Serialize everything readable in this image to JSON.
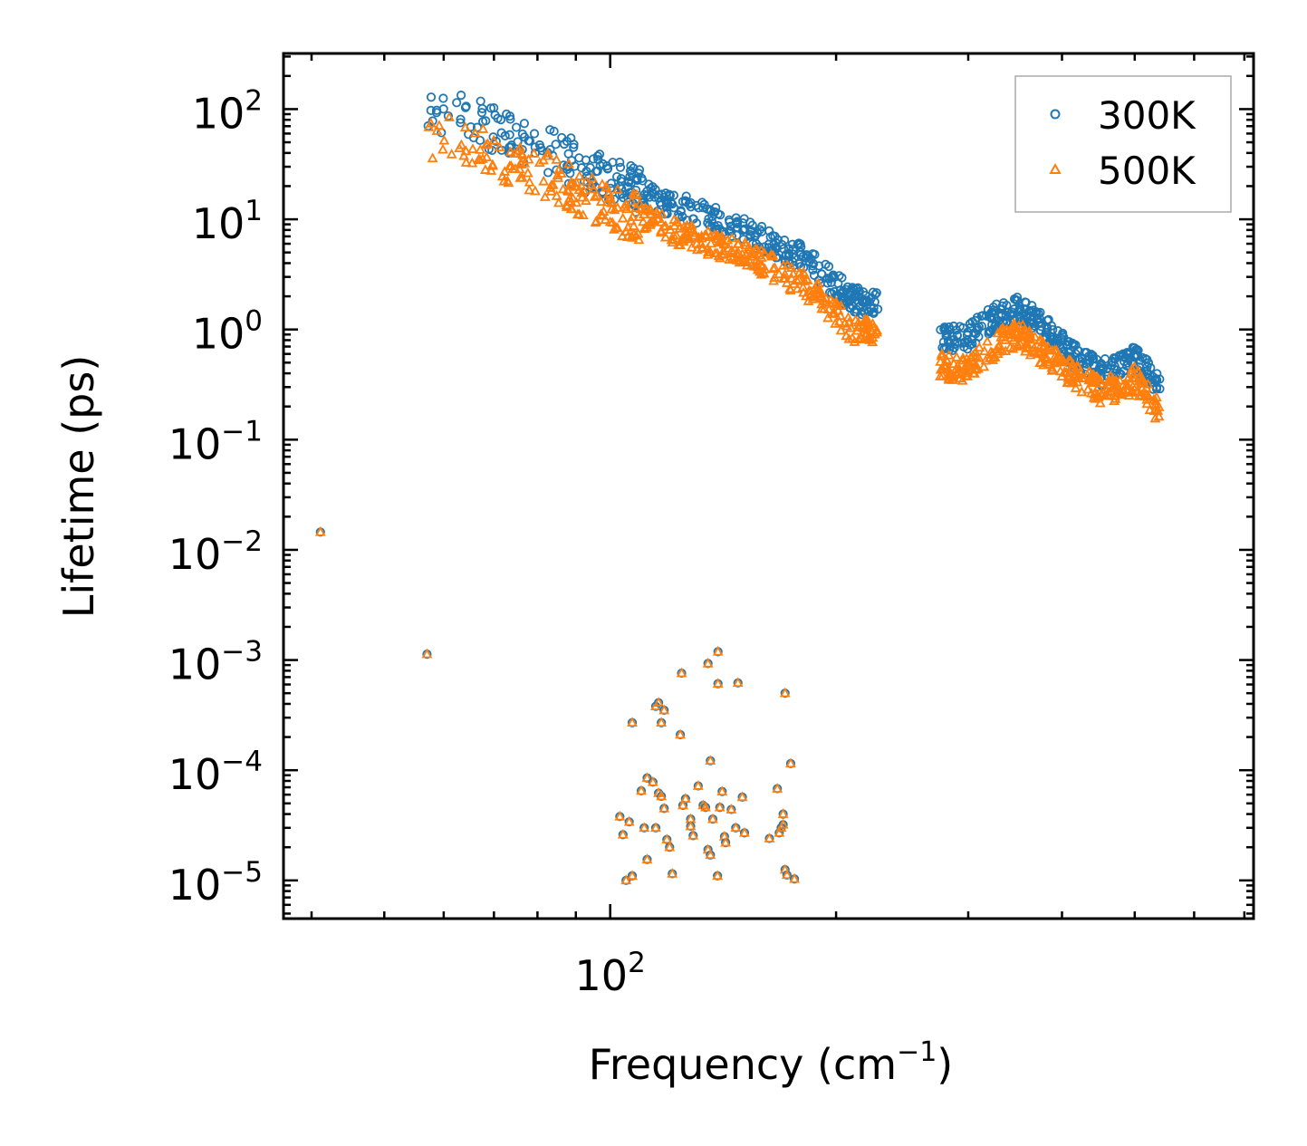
{
  "chart_data": {
    "type": "scatter",
    "title": "",
    "xlabel": "Frequency (cm",
    "xlabel_sup": "−1",
    "xlabel_end": ")",
    "ylabel": "Lifetime (ps)",
    "xscale": "log",
    "yscale": "log",
    "xlim": [
      36.7,
      720
    ],
    "ylim": [
      4.5e-06,
      320
    ],
    "x_tick_labels": [
      {
        "base": "10",
        "exp": "2",
        "value": 100
      }
    ],
    "y_tick_labels": [
      {
        "base": "10",
        "exp": "2",
        "value": 100
      },
      {
        "base": "10",
        "exp": "1",
        "value": 10
      },
      {
        "base": "10",
        "exp": "0",
        "value": 1
      },
      {
        "base": "10",
        "exp": "−1",
        "value": 0.1
      },
      {
        "base": "10",
        "exp": "−2",
        "value": 0.01
      },
      {
        "base": "10",
        "exp": "−3",
        "value": 0.001
      },
      {
        "base": "10",
        "exp": "−4",
        "value": 0.0001
      },
      {
        "base": "10",
        "exp": "−5",
        "value": 1e-05
      }
    ],
    "legend_position": "top-right",
    "series": [
      {
        "name": "300K",
        "marker": "circle",
        "color": "#1f77b4",
        "trend": [
          [
            56,
            110
          ],
          [
            65,
            80
          ],
          [
            75,
            55
          ],
          [
            85,
            40
          ],
          [
            90,
            32
          ],
          [
            95,
            26
          ],
          [
            100,
            22
          ],
          [
            110,
            18
          ],
          [
            120,
            14
          ],
          [
            130,
            12
          ],
          [
            140,
            10
          ],
          [
            150,
            8
          ],
          [
            160,
            6.5
          ],
          [
            170,
            5.5
          ],
          [
            180,
            4.5
          ],
          [
            190,
            3.5
          ],
          [
            200,
            2.5
          ],
          [
            210,
            1.9
          ],
          [
            220,
            1.7
          ],
          [
            228,
            1.7
          ],
          [
            280,
            0.8
          ],
          [
            300,
            0.85
          ],
          [
            320,
            1.2
          ],
          [
            340,
            1.5
          ],
          [
            350,
            1.6
          ],
          [
            380,
            1.1
          ],
          [
            410,
            0.6
          ],
          [
            450,
            0.4
          ],
          [
            480,
            0.45
          ],
          [
            500,
            0.55
          ],
          [
            520,
            0.4
          ],
          [
            540,
            0.3
          ]
        ]
      },
      {
        "name": "500K",
        "marker": "triangle",
        "color": "#ff7f0e",
        "trend": [
          [
            56,
            62
          ],
          [
            65,
            48
          ],
          [
            75,
            32
          ],
          [
            85,
            23
          ],
          [
            90,
            18
          ],
          [
            95,
            15
          ],
          [
            100,
            12
          ],
          [
            110,
            10
          ],
          [
            120,
            8
          ],
          [
            130,
            6.5
          ],
          [
            140,
            5.5
          ],
          [
            150,
            4.8
          ],
          [
            160,
            4
          ],
          [
            170,
            3.2
          ],
          [
            180,
            2.6
          ],
          [
            190,
            2
          ],
          [
            200,
            1.4
          ],
          [
            210,
            1
          ],
          [
            220,
            0.95
          ],
          [
            228,
            0.95
          ],
          [
            280,
            0.45
          ],
          [
            300,
            0.45
          ],
          [
            320,
            0.65
          ],
          [
            340,
            0.85
          ],
          [
            350,
            0.9
          ],
          [
            380,
            0.6
          ],
          [
            410,
            0.4
          ],
          [
            450,
            0.28
          ],
          [
            480,
            0.3
          ],
          [
            500,
            0.35
          ],
          [
            520,
            0.25
          ],
          [
            540,
            0.17
          ]
        ]
      }
    ],
    "outliers": [
      [
        41.1,
        0.0145
      ],
      [
        57.0,
        0.00113
      ],
      [
        139.2,
        0.00119
      ],
      [
        139.2,
        0.00061
      ],
      [
        124.5,
        0.00076
      ],
      [
        135.0,
        0.00093
      ],
      [
        148.0,
        0.00062
      ],
      [
        171.0,
        0.0005
      ],
      [
        174.0,
        0.000115
      ],
      [
        107.0,
        0.00027
      ],
      [
        115.0,
        0.00038
      ],
      [
        116.0,
        0.00041
      ],
      [
        118.0,
        0.00035
      ],
      [
        117.0,
        0.00027
      ],
      [
        124.0,
        0.00021
      ],
      [
        136.0,
        0.000122
      ],
      [
        110.0,
        6.5e-05
      ],
      [
        112.0,
        8.5e-05
      ],
      [
        114.0,
        7.8e-05
      ],
      [
        116.0,
        6.2e-05
      ],
      [
        117.0,
        5.8e-05
      ],
      [
        118.0,
        4.5e-05
      ],
      [
        115.0,
        3e-05
      ],
      [
        111.0,
        3e-05
      ],
      [
        106.0,
        3.4e-05
      ],
      [
        104.0,
        2.6e-05
      ],
      [
        103.0,
        3.8e-05
      ],
      [
        105.0,
        1e-05
      ],
      [
        107.0,
        1.1e-05
      ],
      [
        112.0,
        1.55e-05
      ],
      [
        119.0,
        2.35e-05
      ],
      [
        120.0,
        2e-05
      ],
      [
        121.0,
        1.15e-05
      ],
      [
        125.0,
        4.8e-05
      ],
      [
        126.0,
        5.5e-05
      ],
      [
        128.0,
        3.6e-05
      ],
      [
        128.0,
        3.1e-05
      ],
      [
        129.0,
        2.55e-05
      ],
      [
        131.0,
        7.2e-05
      ],
      [
        133.0,
        4.8e-05
      ],
      [
        134.0,
        4.6e-05
      ],
      [
        135.0,
        1.9e-05
      ],
      [
        136.0,
        1.7e-05
      ],
      [
        137.0,
        3.6e-05
      ],
      [
        139.0,
        1.1e-05
      ],
      [
        140.0,
        4.6e-05
      ],
      [
        141.0,
        6.4e-05
      ],
      [
        142.0,
        2.5e-05
      ],
      [
        142.5,
        2.2e-05
      ],
      [
        145.0,
        4.4e-05
      ],
      [
        147.0,
        3e-05
      ],
      [
        150.0,
        5.7e-05
      ],
      [
        151.0,
        2.7e-05
      ],
      [
        163.0,
        2.4e-05
      ],
      [
        167.0,
        6.8e-05
      ],
      [
        168.0,
        2.7e-05
      ],
      [
        169.0,
        3e-05
      ],
      [
        170.0,
        4e-05
      ],
      [
        170.0,
        3.2e-05
      ],
      [
        171.0,
        1.25e-05
      ],
      [
        172.0,
        1.12e-05
      ],
      [
        176.0,
        1.03e-05
      ]
    ]
  }
}
